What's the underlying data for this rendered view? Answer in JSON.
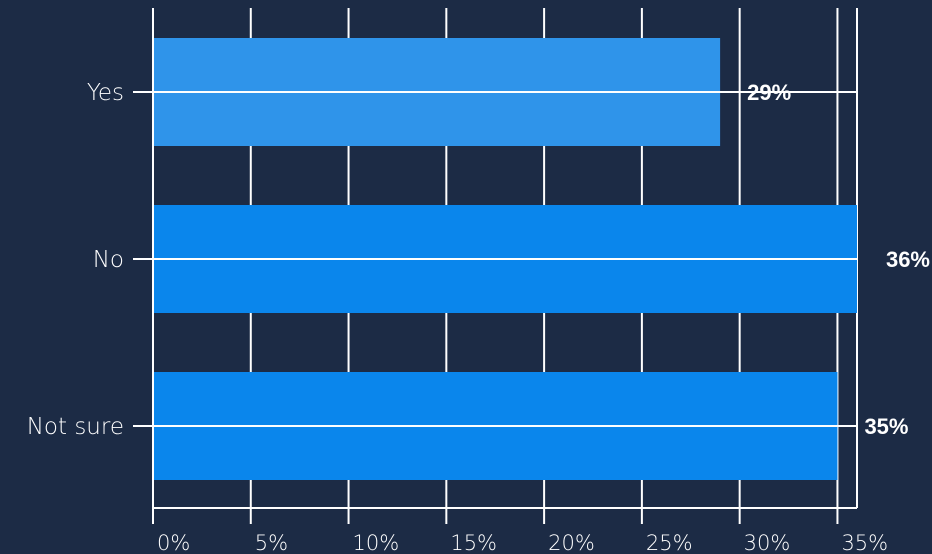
{
  "chart_data": {
    "type": "bar",
    "orientation": "horizontal",
    "categories": [
      "Yes",
      "No",
      "Not sure"
    ],
    "values": [
      29,
      36,
      35
    ],
    "data_labels": [
      "29%",
      "36%",
      "35%"
    ],
    "xlim": [
      0,
      36
    ],
    "x_ticks": [
      0,
      5,
      10,
      15,
      20,
      25,
      30,
      35
    ],
    "x_tick_labels": [
      "0%",
      "5%",
      "10%",
      "15%",
      "20%",
      "25%",
      "30%",
      "35%"
    ],
    "grid": true,
    "colors": {
      "background": "#1c2b45",
      "bars": [
        "#2f94ea",
        "#0a86ec",
        "#0a86ec"
      ],
      "grid": "#ffffff",
      "text": "#ffffff"
    }
  }
}
